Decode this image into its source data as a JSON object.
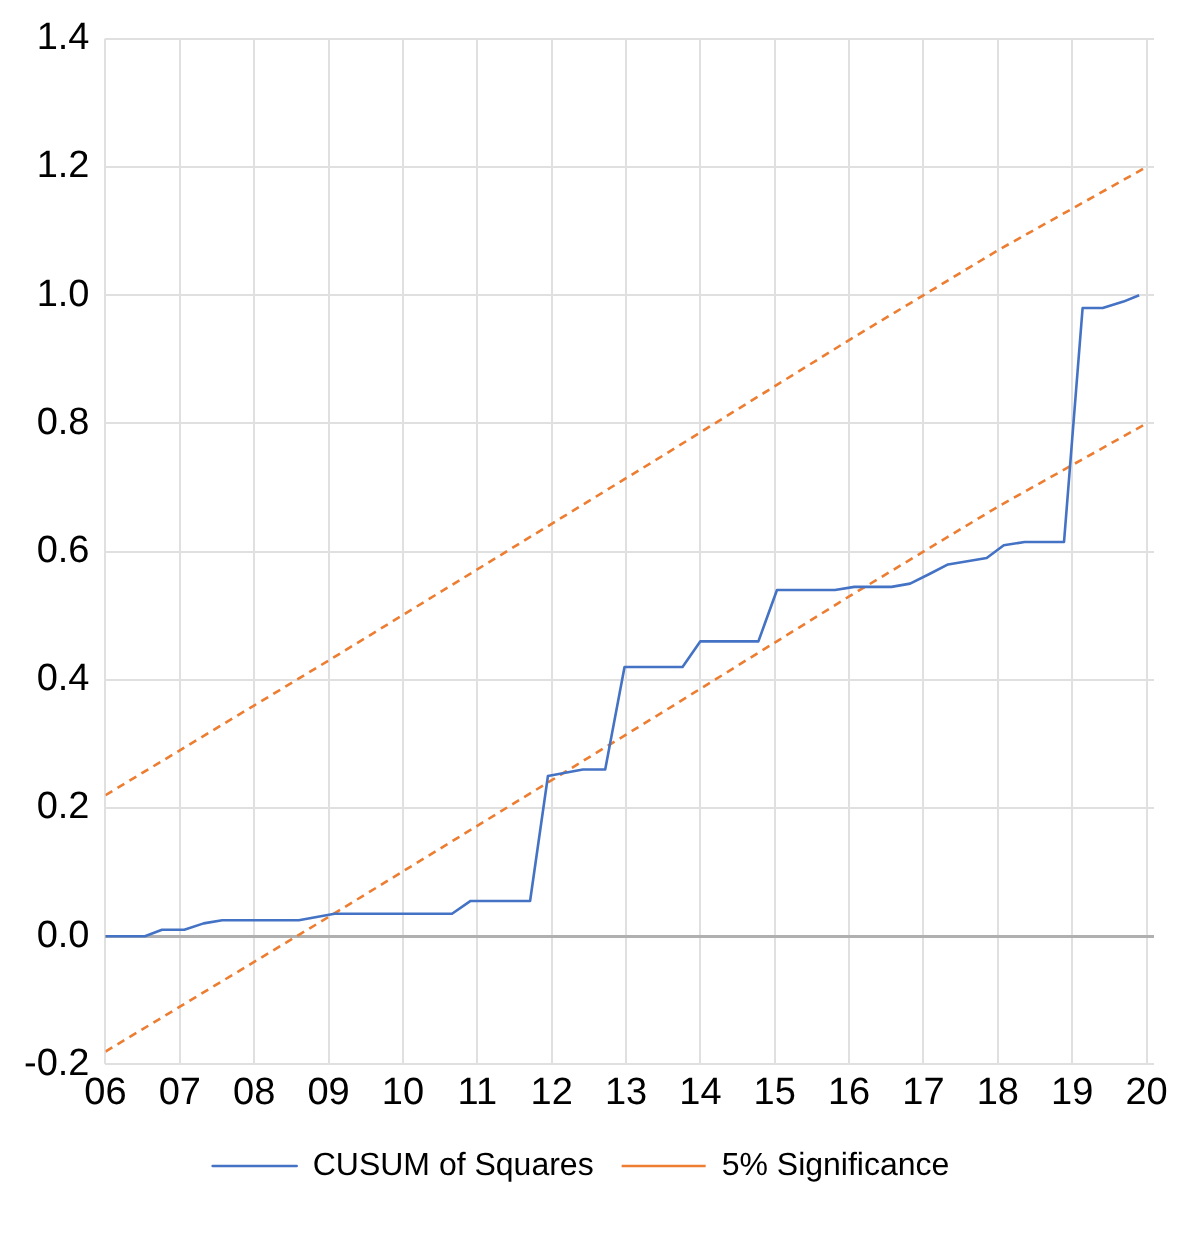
{
  "chart_data": {
    "type": "line",
    "xlim": [
      2006,
      2020.1
    ],
    "xticks": [
      {
        "value": 2006,
        "label": "06"
      },
      {
        "value": 2007,
        "label": "07"
      },
      {
        "value": 2008,
        "label": "08"
      },
      {
        "value": 2009,
        "label": "09"
      },
      {
        "value": 2010,
        "label": "10"
      },
      {
        "value": 2011,
        "label": "11"
      },
      {
        "value": 2012,
        "label": "12"
      },
      {
        "value": 2013,
        "label": "13"
      },
      {
        "value": 2014,
        "label": "14"
      },
      {
        "value": 2015,
        "label": "15"
      },
      {
        "value": 2016,
        "label": "16"
      },
      {
        "value": 2017,
        "label": "17"
      },
      {
        "value": 2018,
        "label": "18"
      },
      {
        "value": 2019,
        "label": "19"
      },
      {
        "value": 2020,
        "label": "20"
      }
    ],
    "ylim": [
      -0.2,
      1.4
    ],
    "yticks": [
      -0.2,
      {
        "value": 0,
        "label": "0.0"
      },
      0.2,
      0.4,
      0.6,
      0.8,
      {
        "value": 1,
        "label": "1.0"
      },
      1.2,
      1.4
    ],
    "grid": true,
    "legend": "bottom",
    "marker": "none",
    "series": [
      {
        "name": "CUSUM of Squares",
        "color": "#4472c4",
        "line_style": "solid",
        "x": [
          2006.0,
          2006.53,
          2006.76,
          2007.06,
          2007.32,
          2007.57,
          2008.6,
          2009.08,
          2010.66,
          2010.91,
          2011.71,
          2011.95,
          2012.42,
          2012.72,
          2012.98,
          2013.76,
          2014.0,
          2014.78,
          2015.03,
          2015.81,
          2016.07,
          2016.57,
          2016.82,
          2017.08,
          2017.33,
          2017.85,
          2018.08,
          2018.36,
          2018.89,
          2019.14,
          2019.41,
          2019.69,
          2019.9
        ],
        "values": [
          0,
          0,
          0.01,
          0.01,
          0.02,
          0.025,
          0.025,
          0.035,
          0.035,
          0.055,
          0.055,
          0.25,
          0.26,
          0.26,
          0.42,
          0.42,
          0.46,
          0.46,
          0.54,
          0.54,
          0.545,
          0.545,
          0.55,
          0.565,
          0.58,
          0.59,
          0.61,
          0.615,
          0.615,
          0.98,
          0.98,
          0.99,
          1.0
        ]
      },
      {
        "name": "5% Significance",
        "color": "#ed7d31",
        "line_style": "dashed",
        "x": [
          2006,
          2007,
          2009,
          2013.5,
          2016,
          2018,
          2020
        ],
        "values": [
          0.22,
          0.29,
          0.43,
          0.75,
          0.93,
          1.07,
          1.2
        ]
      },
      {
        "color": "#ed7d31",
        "line_style": "dashed",
        "x": [
          2006,
          2007,
          2009,
          2013.5,
          2016,
          2018,
          2020
        ],
        "values": [
          -0.18,
          -0.11,
          0.03,
          0.35,
          0.53,
          0.67,
          0.8
        ]
      }
    ]
  }
}
